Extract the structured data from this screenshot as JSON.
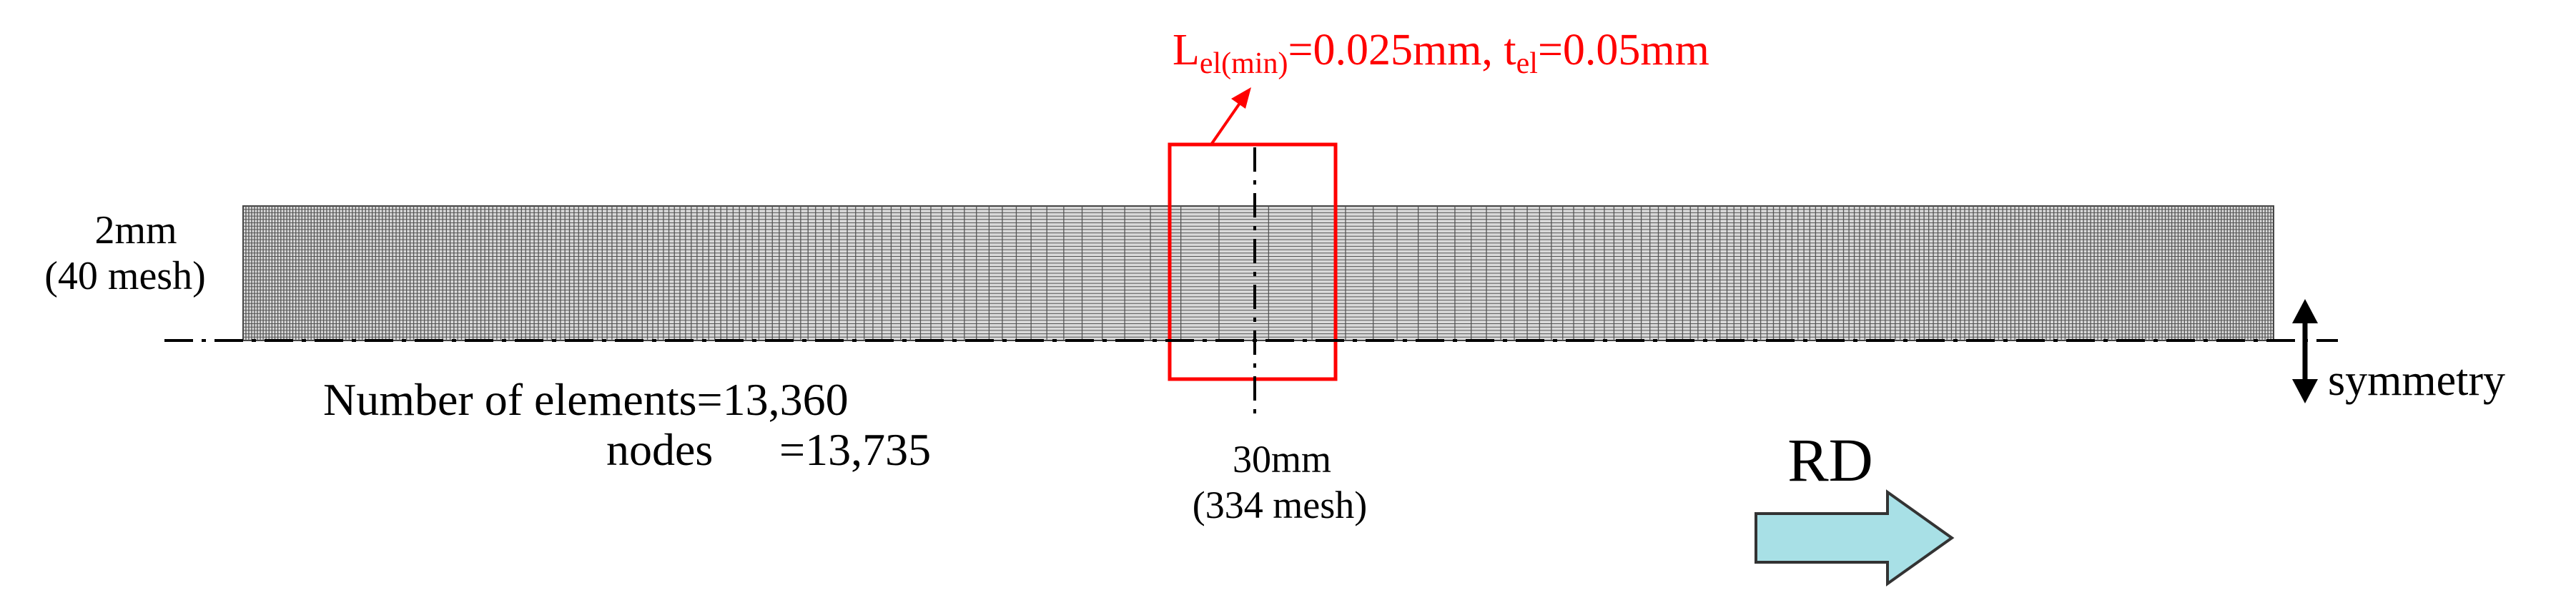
{
  "annotation": {
    "L_main": "L",
    "L_sub": "el(min)",
    "L_value": "=0.025mm, ",
    "t_main": "t",
    "t_sub": "el",
    "t_value": "=0.05mm",
    "color": "#ff0000"
  },
  "thickness": {
    "value": "2mm",
    "mesh": "(40 mesh)"
  },
  "length": {
    "value": "30mm",
    "mesh": "(334 mesh)"
  },
  "counts": {
    "elements_label": "Number of elements=13,360",
    "nodes_label": "nodes",
    "nodes_value": "=13,735"
  },
  "symmetry_label": "symmetry",
  "direction_label": "RD",
  "mesh": {
    "columns": 334,
    "rows": 40,
    "line_color": "#555555",
    "fill_color": "#d9d9d9",
    "arrow_fill": "#a8e0e6"
  }
}
